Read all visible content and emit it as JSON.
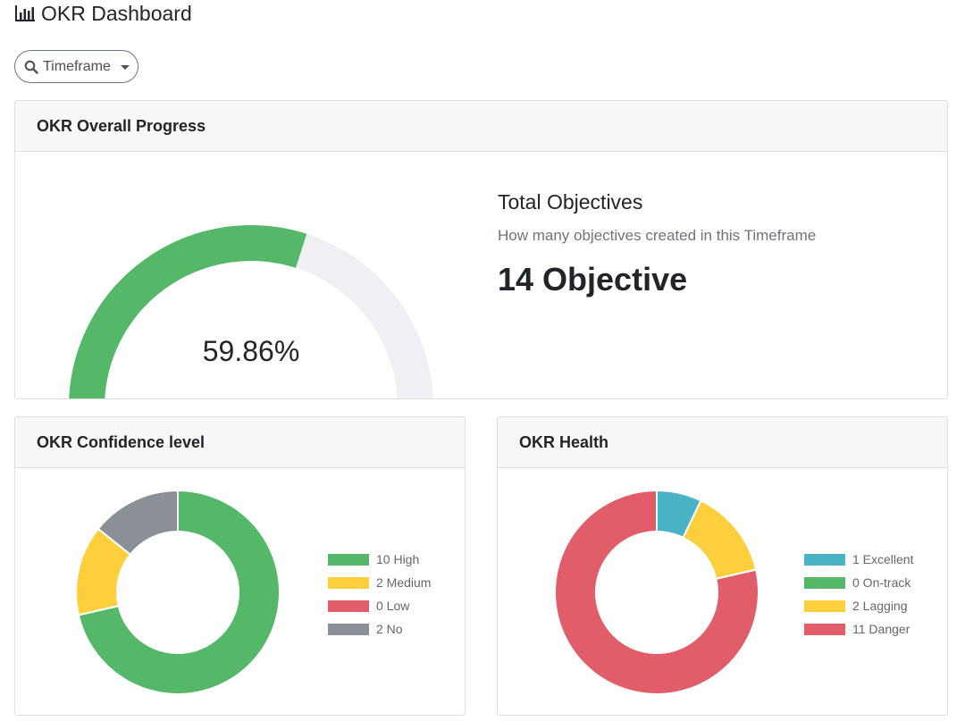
{
  "header": {
    "icon": "bar-chart-icon",
    "title": "OKR Dashboard"
  },
  "filter": {
    "label": "Timeframe",
    "icon": "search-icon"
  },
  "progress_card": {
    "title": "OKR Overall Progress",
    "gauge": {
      "percent": 59.86,
      "label": "59.86%",
      "fill_color": "#55b868",
      "track_color": "#eff0f3"
    },
    "stats": {
      "title": "Total Objectives",
      "description": "How many objectives created in this Timeframe",
      "value": "14 Objective"
    }
  },
  "confidence_card": {
    "title": "OKR Confidence level",
    "legend": [
      {
        "label": "10 High",
        "value": 10,
        "color": "#55b868"
      },
      {
        "label": "2 Medium",
        "value": 2,
        "color": "#fecf3d"
      },
      {
        "label": "0 Low",
        "value": 0,
        "color": "#e15d69"
      },
      {
        "label": "2 No",
        "value": 2,
        "color": "#8a9096"
      }
    ]
  },
  "health_card": {
    "title": "OKR Health",
    "legend": [
      {
        "label": "1 Excellent",
        "value": 1,
        "color": "#4ab2c6"
      },
      {
        "label": "0 On-track",
        "value": 0,
        "color": "#55b868"
      },
      {
        "label": "2 Lagging",
        "value": 2,
        "color": "#fecf3d"
      },
      {
        "label": "11 Danger",
        "value": 11,
        "color": "#e15d69"
      }
    ]
  }
}
